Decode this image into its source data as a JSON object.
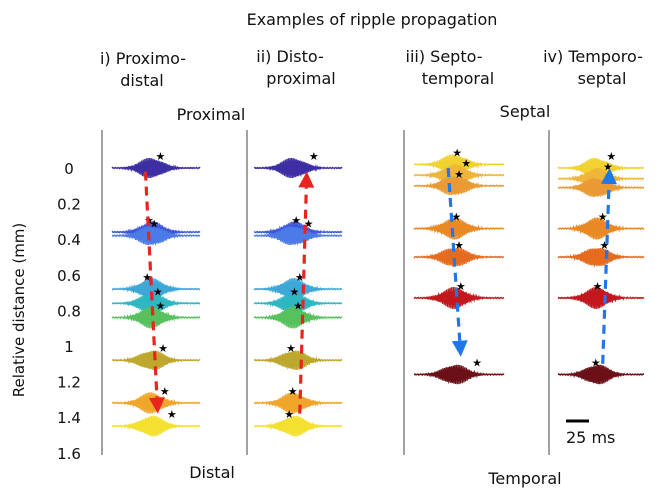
{
  "title": "Examples of ripple propagation",
  "ylabel": "Relative distance (mm)",
  "yticks": [
    "0",
    "0.2",
    "0.4",
    "0.6",
    "0.8",
    "1",
    "1.2",
    "1.4",
    "1.6"
  ],
  "panels": [
    {
      "id": "p1",
      "label": [
        "i) Proximo-",
        "distal"
      ],
      "traces": [
        {
          "d": 0.0,
          "color": "#3b2fa3",
          "star": 0.55
        },
        {
          "d": 0.36,
          "color": "#3f56d8",
          "star": 0.42
        },
        {
          "d": 0.38,
          "color": "#4a7be6",
          "star": 0.48
        },
        {
          "d": 0.68,
          "color": "#3da7d8",
          "star": 0.4
        },
        {
          "d": 0.76,
          "color": "#2fb6c3",
          "star": 0.52
        },
        {
          "d": 0.84,
          "color": "#57c15d",
          "star": 0.55
        },
        {
          "d": 1.08,
          "color": "#bda82d",
          "star": 0.58
        },
        {
          "d": 1.32,
          "color": "#f0a62a",
          "star": 0.6
        },
        {
          "d": 1.45,
          "color": "#f4e02e",
          "star": 0.68
        }
      ],
      "arrow": {
        "color": "#e8241f",
        "from": 0.02,
        "to": 1.38,
        "dir": "down"
      }
    },
    {
      "id": "p2",
      "label": [
        "ii)  Disto-",
        "proximal"
      ],
      "traces": [
        {
          "d": 0.0,
          "color": "#3b2fa3",
          "star": 0.68
        },
        {
          "d": 0.36,
          "color": "#3f56d8",
          "star": 0.48
        },
        {
          "d": 0.38,
          "color": "#4a7be6",
          "star": 0.62
        },
        {
          "d": 0.68,
          "color": "#3da7d8",
          "star": 0.52
        },
        {
          "d": 0.76,
          "color": "#2fb6c3",
          "star": 0.46
        },
        {
          "d": 0.84,
          "color": "#57c15d",
          "star": 0.5
        },
        {
          "d": 1.08,
          "color": "#bda82d",
          "star": 0.42
        },
        {
          "d": 1.32,
          "color": "#f0a62a",
          "star": 0.44
        },
        {
          "d": 1.45,
          "color": "#f4e02e",
          "star": 0.4
        }
      ],
      "arrow": {
        "color": "#e8241f",
        "from": 1.38,
        "to": 0.02,
        "dir": "up"
      }
    },
    {
      "id": "p3",
      "label": [
        "iii)  Septo-",
        "temporal"
      ],
      "traces": [
        {
          "d": -0.02,
          "color": "#f2d230",
          "star": 0.48
        },
        {
          "d": 0.04,
          "color": "#efb43a",
          "star": 0.58
        },
        {
          "d": 0.1,
          "color": "#e99a34",
          "star": 0.5
        },
        {
          "d": 0.34,
          "color": "#e88924",
          "star": 0.47
        },
        {
          "d": 0.5,
          "color": "#e56b1e",
          "star": 0.5
        },
        {
          "d": 0.73,
          "color": "#c2181d",
          "star": 0.52
        },
        {
          "d": 1.16,
          "color": "#6b1016",
          "star": 0.7
        }
      ],
      "arrow": {
        "color": "#1f78e6",
        "from": 0.0,
        "to": 1.06,
        "dir": "down"
      }
    },
    {
      "id": "p4",
      "label": [
        "iv)  Temporo-",
        "septal"
      ],
      "traces": [
        {
          "d": 0.0,
          "color": "#f2d230",
          "star": 0.62
        },
        {
          "d": 0.06,
          "color": "#efb43a",
          "star": 0.58
        },
        {
          "d": 0.11,
          "color": "#e99a34",
          "star": 0.6
        },
        {
          "d": 0.34,
          "color": "#e88924",
          "star": 0.52
        },
        {
          "d": 0.5,
          "color": "#e56b1e",
          "star": 0.54
        },
        {
          "d": 0.73,
          "color": "#c2181d",
          "star": 0.46
        },
        {
          "d": 1.16,
          "color": "#6b1016",
          "star": 0.44
        }
      ],
      "arrow": {
        "color": "#1f78e6",
        "from": 1.1,
        "to": 0.0,
        "dir": "up"
      }
    }
  ],
  "annotations": {
    "proximal": "Proximal",
    "distal": "Distal",
    "septal": "Septal",
    "temporal": "Temporal",
    "scalebar": "25 ms"
  }
}
